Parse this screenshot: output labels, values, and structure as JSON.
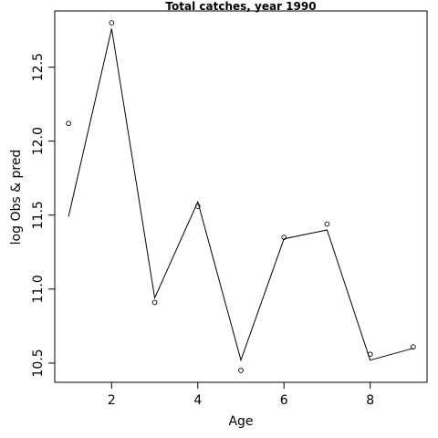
{
  "chart_data": {
    "type": "line",
    "title": "Total catches, year 1990",
    "xlabel": "Age",
    "ylabel": "log Obs & pred",
    "xlim": [
      0.68,
      9.32
    ],
    "ylim": [
      10.37,
      12.88
    ],
    "x_ticks": [
      2,
      4,
      6,
      8
    ],
    "y_ticks": [
      10.5,
      11.0,
      11.5,
      12.0,
      12.5
    ],
    "x_tick_labels": [
      "2",
      "4",
      "6",
      "8"
    ],
    "y_tick_labels": [
      "10.5",
      "11.0",
      "11.5",
      "12.0",
      "12.5"
    ],
    "grid": false,
    "legend": "none",
    "series": [
      {
        "style": "points",
        "x": [
          1,
          2,
          3,
          4,
          5,
          6,
          7,
          8,
          9
        ],
        "y": [
          12.12,
          12.8,
          10.91,
          11.56,
          10.45,
          11.35,
          11.44,
          10.56,
          10.61
        ]
      },
      {
        "style": "line",
        "x": [
          1,
          2,
          3,
          4,
          5,
          6,
          7,
          8,
          9
        ],
        "y": [
          11.49,
          12.76,
          10.94,
          11.59,
          10.52,
          11.34,
          11.4,
          10.52,
          10.6
        ]
      }
    ]
  }
}
